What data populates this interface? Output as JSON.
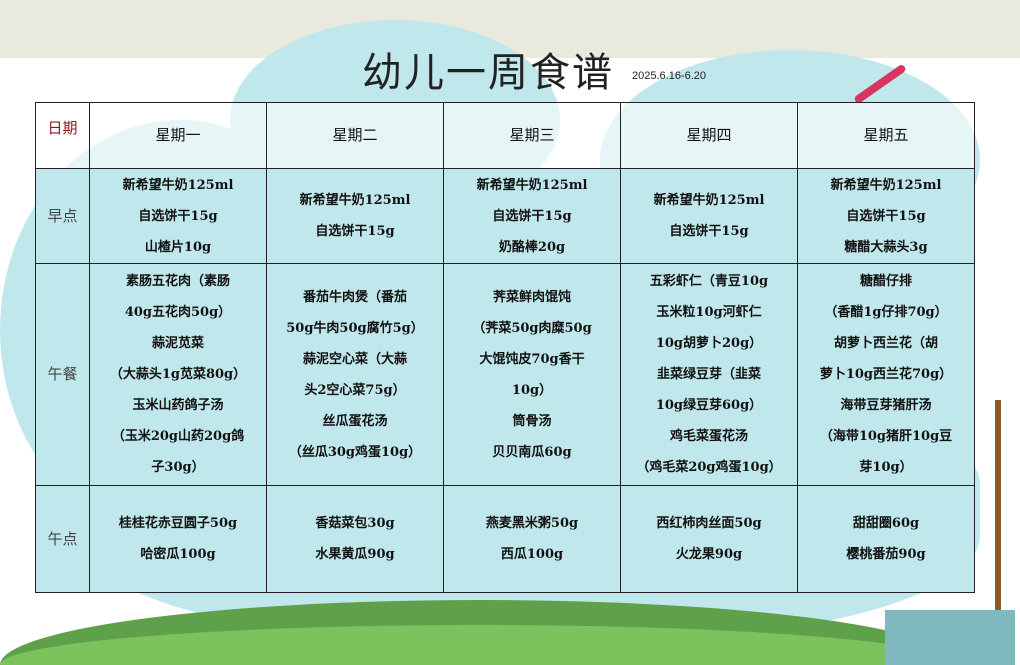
{
  "title": "幼儿一周食谱",
  "date": "2025.6.16-6.20",
  "corner_label": "日期",
  "days": [
    "星期一",
    "星期二",
    "星期三",
    "星期四",
    "星期五"
  ],
  "rows": [
    {
      "label": "早点",
      "cells": [
        [
          "新希望牛奶125ml",
          "自选饼干15g",
          "山楂片10g"
        ],
        [
          "新希望牛奶125ml",
          "自选饼干15g"
        ],
        [
          "新希望牛奶125ml",
          "自选饼干15g",
          "奶酪棒20g"
        ],
        [
          "新希望牛奶125ml",
          "自选饼干15g"
        ],
        [
          "新希望牛奶125ml",
          "自选饼干15g",
          "糖醋大蒜头3g"
        ]
      ]
    },
    {
      "label": "午餐",
      "cells": [
        [
          "素肠五花肉（素肠",
          "40g五花肉50g）",
          "蒜泥苋菜",
          "（大蒜头1g苋菜80g）",
          "玉米山药鸽子汤",
          "（玉米20g山药20g鸽",
          "子30g）"
        ],
        [
          "番茄牛肉煲（番茄",
          "50g牛肉50g腐竹5g）",
          "蒜泥空心菜（大蒜",
          "头2空心菜75g）",
          "丝瓜蛋花汤",
          "（丝瓜30g鸡蛋10g）"
        ],
        [
          "荠菜鲜肉馄饨",
          "（荠菜50g肉糜50g",
          "大馄饨皮70g香干",
          "10g）",
          "筒骨汤",
          "贝贝南瓜60g"
        ],
        [
          "五彩虾仁（青豆10g",
          "玉米粒10g河虾仁",
          "10g胡萝卜20g）",
          "韭菜绿豆芽（韭菜",
          "10g绿豆芽60g）",
          "鸡毛菜蛋花汤",
          "（鸡毛菜20g鸡蛋10g）"
        ],
        [
          "糖醋仔排",
          "（香醋1g仔排70g）",
          "胡萝卜西兰花（胡",
          "萝卜10g西兰花70g）",
          "海带豆芽猪肝汤",
          "（海带10g猪肝10g豆",
          "芽10g）"
        ]
      ]
    },
    {
      "label": "午点",
      "cells": [
        [
          "桂桂花赤豆圆子50g",
          "哈密瓜100g"
        ],
        [
          "香菇菜包30g",
          "水果黄瓜90g"
        ],
        [
          "燕麦黑米粥50g",
          "西瓜100g"
        ],
        [
          "西红柿肉丝面50g",
          "火龙果90g"
        ],
        [
          "甜甜圈60g",
          "樱桃番茄90g"
        ]
      ]
    }
  ]
}
